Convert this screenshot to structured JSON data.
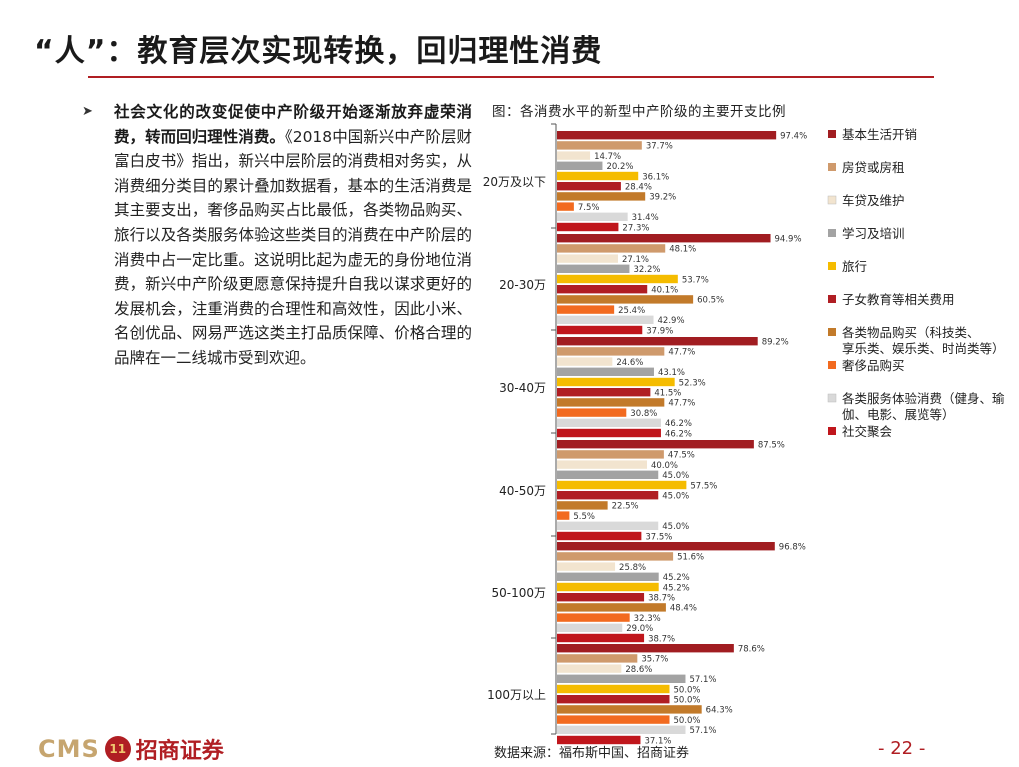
{
  "page": {
    "title": "“人”：教育层次实现转换，回归理性消费",
    "bullet_bold": "社会文化的改变促使中产阶级开始逐渐放弃虚荣消费，转而回归理性消费。",
    "bullet_rest": "《2018中国新兴中产阶层财富白皮书》指出，新兴中层阶层的消费相对务实，从消费细分类目的累计叠加数据看，基本的生活消费是其主要支出，奢侈品购买占比最低，各类物品购买、旅行以及各类服务体验这些类目的消费在中产阶层的消费中占一定比重。这说明比起为虚无的身份地位消费，新兴中产阶级更愿意保持提升自我以谋求更好的发展机会，注重消费的合理性和高效性，因此小米、名创优品、网易严选这类主打品质保障、价格合理的品牌在一二线城市受到欢迎。",
    "source": "数据来源：福布斯中国、招商证券",
    "page_number": "- 22 -",
    "logo_text": "CMS",
    "logo_cn": "招商证券"
  },
  "chart_data": {
    "type": "bar",
    "orientation": "horizontal",
    "title": "图：各消费水平的新型中产阶级的主要开支比例",
    "categories": [
      "20万及以下",
      "20-30万",
      "30-40万",
      "40-50万",
      "50-100万",
      "100万以上"
    ],
    "series": [
      {
        "name": "基本生活开销",
        "color": "#a11d21",
        "values": [
          97.4,
          94.9,
          89.2,
          87.5,
          96.8,
          78.6
        ]
      },
      {
        "name": "房贷或房租",
        "color": "#cf9a6c",
        "values": [
          37.7,
          48.1,
          47.7,
          47.5,
          51.6,
          35.7
        ]
      },
      {
        "name": "车贷及维护",
        "color": "#f2e4cf",
        "values": [
          14.7,
          27.1,
          24.6,
          40.0,
          25.8,
          28.6
        ]
      },
      {
        "name": "学习及培训",
        "color": "#a3a3a3",
        "values": [
          20.2,
          32.2,
          43.1,
          45.0,
          45.2,
          57.1
        ]
      },
      {
        "name": "旅行",
        "color": "#f5bc00",
        "values": [
          36.1,
          53.7,
          52.3,
          57.5,
          45.2,
          50.0
        ]
      },
      {
        "name": "子女教育等相关费用",
        "color": "#b01e23",
        "values": [
          28.4,
          40.1,
          41.5,
          45.0,
          38.7,
          50.0
        ]
      },
      {
        "name": "各类物品购买（科技类、享乐类、娱乐类、时尚类等）",
        "color": "#c27a2a",
        "values": [
          39.2,
          60.5,
          47.7,
          22.5,
          48.4,
          64.3
        ]
      },
      {
        "name": "奢侈品购买",
        "color": "#f26a1f",
        "values": [
          7.5,
          25.4,
          30.8,
          5.5,
          32.3,
          50.0
        ]
      },
      {
        "name": "各类服务体验消费（健身、瑜伽、电影、展览等）",
        "color": "#d9d9d9",
        "values": [
          31.4,
          42.9,
          46.2,
          45.0,
          29.0,
          57.1
        ]
      },
      {
        "name": "社交聚会",
        "color": "#c0161c",
        "values": [
          27.3,
          37.9,
          46.2,
          37.5,
          38.7,
          37.1
        ]
      }
    ],
    "value_suffix": "%",
    "xlim": [
      0,
      100
    ],
    "legend_position": "right"
  }
}
